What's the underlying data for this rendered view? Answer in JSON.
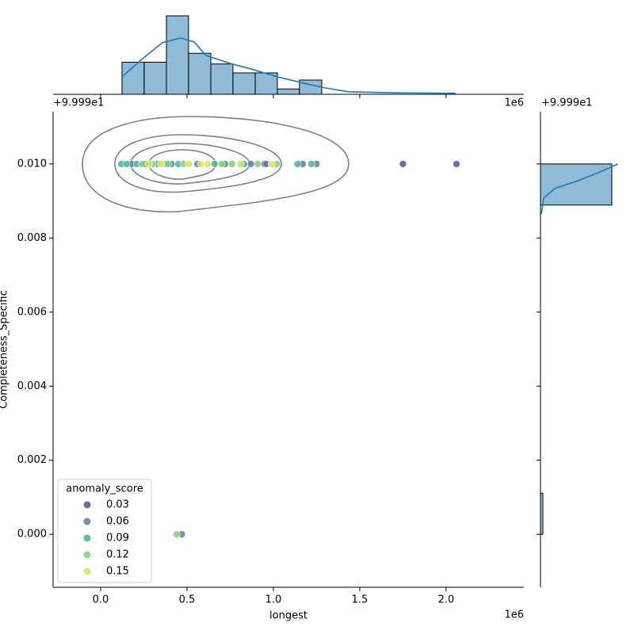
{
  "chart_data": [
    {
      "type": "scatter",
      "x_label": "longest",
      "y_label": "Completeness_Specific",
      "x_offset": "1e6",
      "y_offset": "+9.999e1",
      "legend_title": "anomaly_score",
      "legend_position": "lower left",
      "xlim": [
        -0.275,
        2.45
      ],
      "ylim": [
        -0.00143,
        0.01141
      ],
      "xticks": [
        {
          "value": 0,
          "label": "0.0"
        },
        0.5,
        {
          "value": 1,
          "label": "1.0"
        },
        1.5,
        {
          "value": 2,
          "label": "2.0"
        }
      ],
      "yticks": [
        {
          "value": 0,
          "label": "0.000"
        },
        0.002,
        0.004,
        0.006,
        0.008,
        {
          "value": 0.01,
          "label": "0.010"
        }
      ],
      "series": [
        {
          "name": "0.03",
          "color": "#5f4f8f",
          "x": [
            0.95,
            1.75,
            2.06
          ],
          "y": [
            0.01,
            0.01,
            0.01
          ]
        },
        {
          "name": "0.06",
          "color": "#5a7fa0",
          "x": [
            0.18,
            0.26,
            0.38,
            0.41,
            0.56,
            0.72,
            0.87,
            0.96,
            1.17,
            1.25,
            0.47
          ],
          "y": [
            0.01,
            0.01,
            0.01,
            0.01,
            0.01,
            0.01,
            0.01,
            0.01,
            0.01,
            0.01,
            0
          ]
        },
        {
          "name": "0.09",
          "color": "#4dae9f",
          "x": [
            0.12,
            0.15,
            0.21,
            0.33,
            0.45,
            0.66,
            0.83,
            1.14,
            1.22
          ],
          "y": [
            0.01,
            0.01,
            0.01,
            0.01,
            0.01,
            0.01,
            0.01,
            0.01,
            0.01
          ]
        },
        {
          "name": "0.12",
          "color": "#7fd07d",
          "x": [
            0.24,
            0.3,
            0.39,
            0.48,
            0.7,
            0.76,
            0.91,
            1.02,
            0.44
          ],
          "y": [
            0.01,
            0.01,
            0.01,
            0.01,
            0.01,
            0.01,
            0.01,
            0.01,
            0
          ]
        },
        {
          "name": "0.15",
          "color": "#d9e35a",
          "x": [
            0.28,
            0.35,
            0.51,
            0.58,
            0.62,
            0.81,
            0.99
          ],
          "y": [
            0.01,
            0.01,
            0.01,
            0.01,
            0.01,
            0.01,
            0.01
          ]
        }
      ]
    },
    {
      "type": "histogram",
      "orientation": "vertical",
      "color": "#1f77b4",
      "ylim": [
        0,
        22
      ],
      "bins": [
        0.124,
        0.252,
        0.381,
        0.509,
        0.638,
        0.766,
        0.895,
        1.023,
        1.151,
        1.28
      ],
      "values": [
        9,
        9,
        22,
        11.5,
        8.5,
        6,
        6,
        1.5,
        4
      ],
      "kde_positions": [
        0.124,
        0.243,
        0.358,
        0.463,
        0.541,
        0.61,
        0.748,
        0.885,
        1.023,
        1.161,
        1.298,
        1.436,
        1.711,
        2.055
      ],
      "kde_density": [
        4.9,
        10,
        14.5,
        15.8,
        14.7,
        10.9,
        8.7,
        6.9,
        4.9,
        3.3,
        1.8,
        0.7,
        0.4,
        0.3
      ]
    },
    {
      "type": "histogram",
      "orientation": "horizontal",
      "color": "#1f77b4",
      "xlim": [
        0,
        66
      ],
      "bins": [
        0,
        0.00111,
        0.00222,
        0.00333,
        0.00444,
        0.00556,
        0.00667,
        0.00778,
        0.00889,
        0.01
      ],
      "values": [
        2,
        0,
        0,
        0,
        0,
        0,
        0,
        0,
        60
      ],
      "kde_positions": [
        0.00865,
        0.00908,
        0.00934,
        0.00955,
        0.00981,
        0.01
      ],
      "kde_density": [
        0.67,
        2.7,
        12,
        32,
        52,
        65
      ]
    }
  ]
}
